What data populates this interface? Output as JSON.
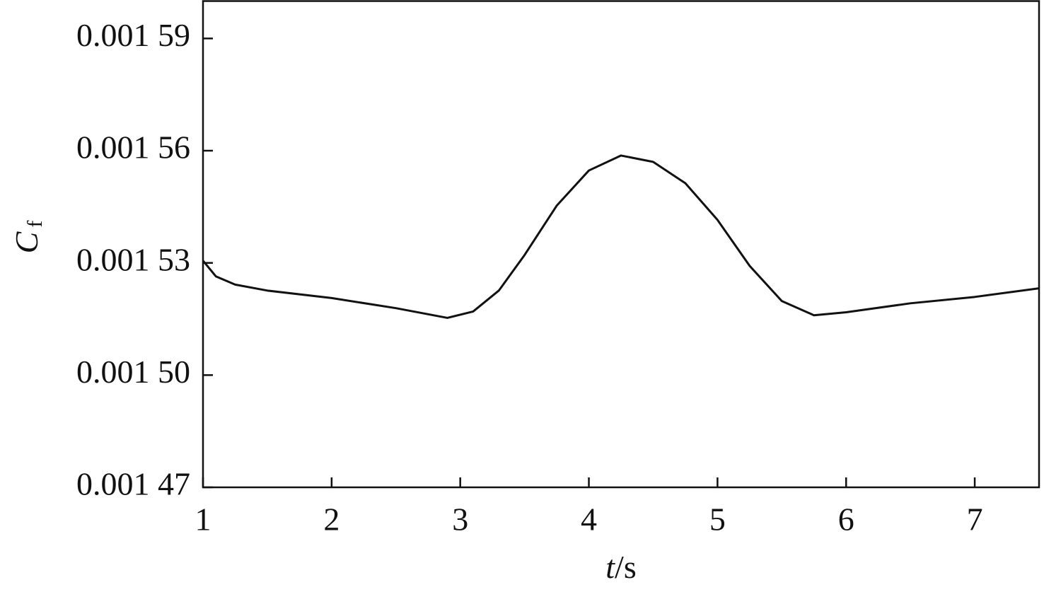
{
  "chart_data": {
    "type": "line",
    "xlabel": [
      "t",
      "/s"
    ],
    "ylabel": [
      "C",
      "f"
    ],
    "x": [
      1.0,
      1.1,
      1.25,
      1.5,
      2.0,
      2.5,
      2.9,
      3.1,
      3.3,
      3.5,
      3.75,
      4.0,
      4.25,
      4.5,
      4.75,
      5.0,
      5.25,
      5.5,
      5.75,
      6.0,
      6.5,
      7.0,
      7.5
    ],
    "series": [
      {
        "color": "#111111",
        "values": [
          0.0015306,
          0.0015264,
          0.0015242,
          0.0015226,
          0.0015206,
          0.0015179,
          0.0015153,
          0.001517,
          0.0015226,
          0.0015321,
          0.0015453,
          0.0015547,
          0.0015587,
          0.001557,
          0.0015513,
          0.0015415,
          0.0015292,
          0.0015198,
          0.001516,
          0.0015168,
          0.0015192,
          0.0015209,
          0.0015232
        ]
      }
    ],
    "xlim": [
      1,
      7.5
    ],
    "xticks": [
      1,
      2,
      3,
      4,
      5,
      6,
      7
    ],
    "ylim": [
      0.00147,
      0.0016
    ],
    "yticks": [
      {
        "value": 0.00147,
        "label": "0.001 47"
      },
      {
        "value": 0.0015,
        "label": "0.001 50"
      },
      {
        "value": 0.00153,
        "label": "0.001 53"
      },
      {
        "value": 0.00156,
        "label": "0.001 56"
      },
      {
        "value": 0.00159,
        "label": "0.001 59"
      }
    ],
    "grid": false
  }
}
